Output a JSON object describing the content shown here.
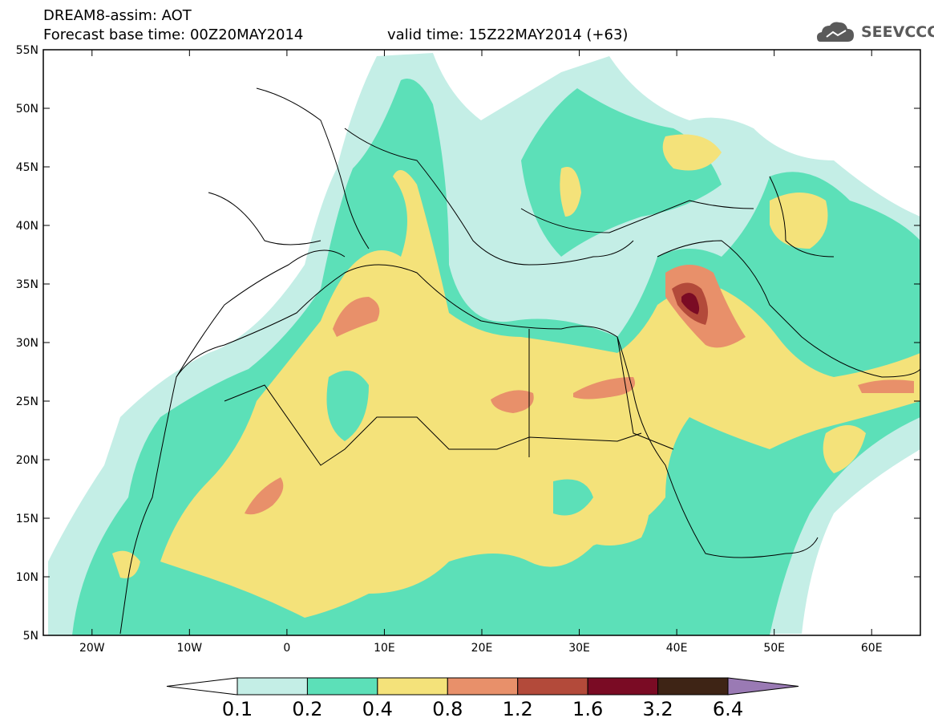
{
  "header": {
    "title_line1": "DREAM8-assim: AOT",
    "title_line2_left": "Forecast base time: 00Z20MAY2014",
    "title_line2_right": "valid time: 15Z22MAY2014 (+63)",
    "logo_text": "SEEVCCC",
    "logo_icon": "cloud-icon"
  },
  "map": {
    "projection": "lat-lon",
    "lon_range": [
      -25,
      65
    ],
    "lat_range": [
      5,
      55
    ],
    "lat_ticks": [
      "5N",
      "10N",
      "15N",
      "20N",
      "25N",
      "30N",
      "35N",
      "40N",
      "45N",
      "50N",
      "55N"
    ],
    "lon_ticks": [
      "20W",
      "10W",
      "0",
      "10E",
      "20E",
      "30E",
      "40E",
      "50E",
      "60E"
    ],
    "field": "Aerosol Optical Thickness"
  },
  "colorbar": {
    "colors": [
      "#ffffff",
      "#c4eee6",
      "#5ce0b8",
      "#f4e27a",
      "#e8906a",
      "#b34a3a",
      "#7a0b24",
      "#3e2415",
      "#9a7ab4"
    ],
    "labels": [
      "0.1",
      "0.2",
      "0.4",
      "0.8",
      "1.2",
      "1.6",
      "3.2",
      "6.4"
    ],
    "colors_meaning": {
      "#ffffff": "<0.1",
      "#c4eee6": "0.1-0.2",
      "#5ce0b8": "0.2-0.4",
      "#f4e27a": "0.4-0.8",
      "#e8906a": "0.8-1.2",
      "#b34a3a": "1.2-1.6",
      "#7a0b24": "1.6-3.2",
      "#3e2415": "3.2-6.4",
      "#9a7ab4": ">6.4"
    }
  }
}
